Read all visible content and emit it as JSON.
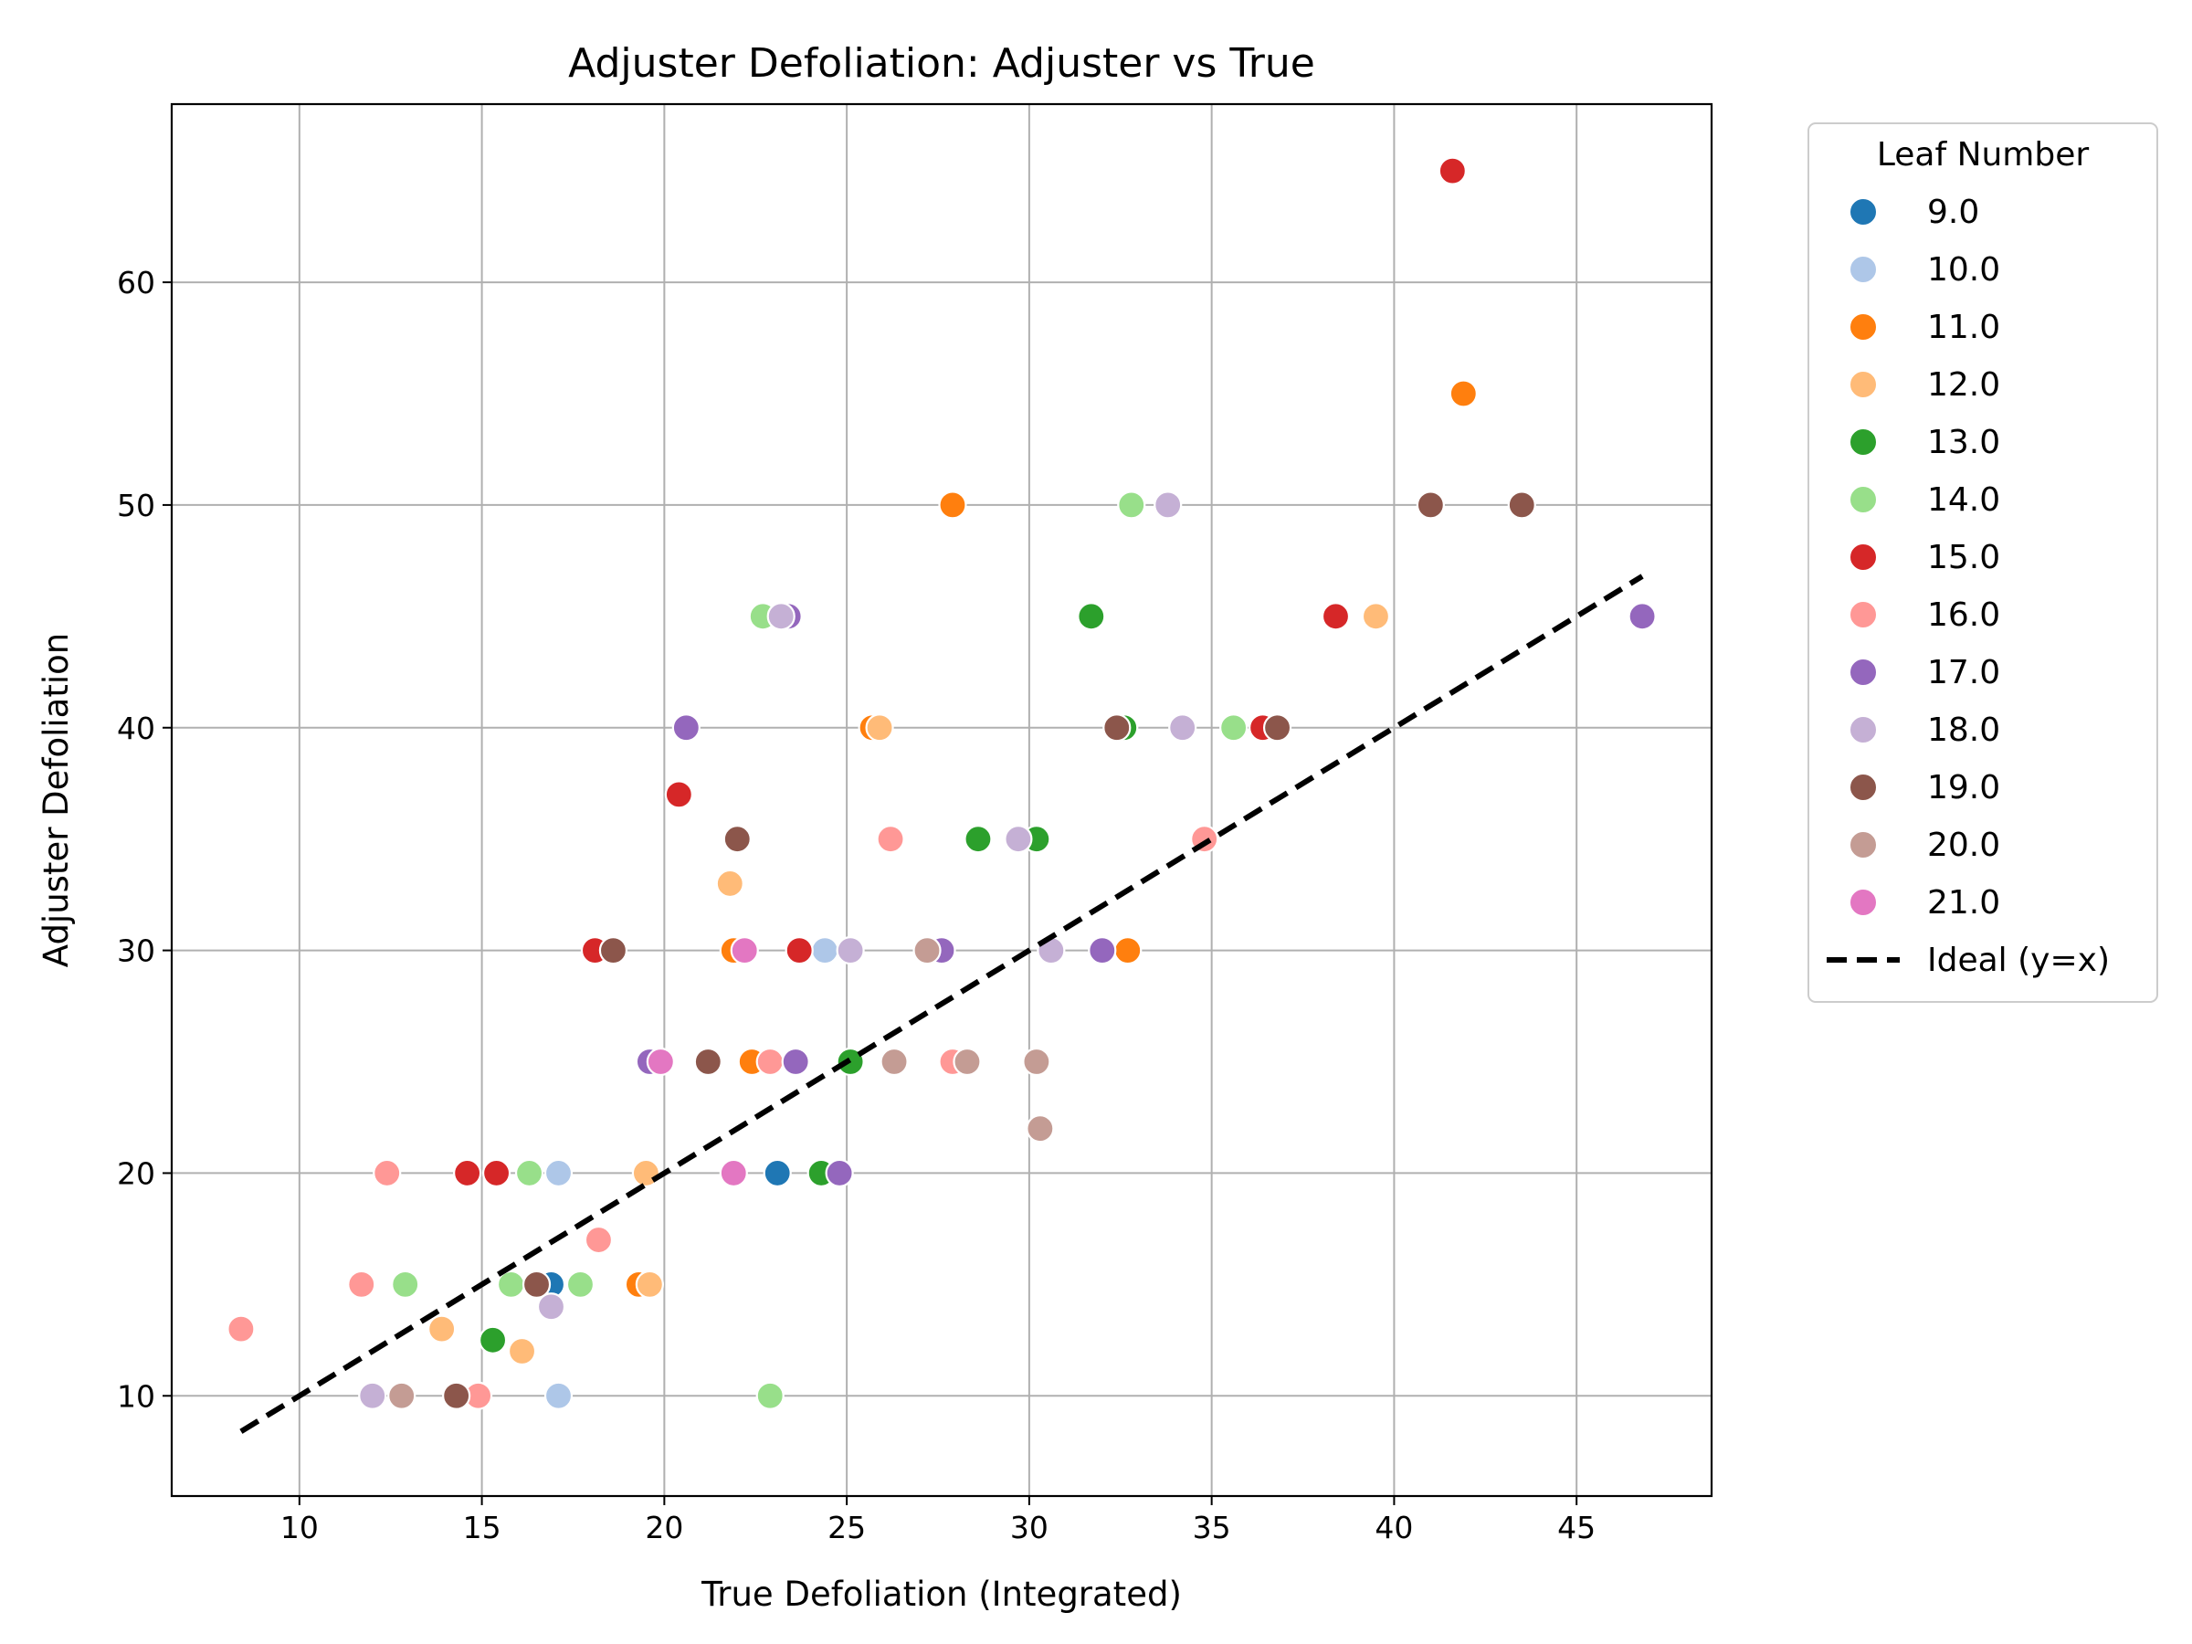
{
  "chart_data": {
    "type": "scatter",
    "title": "Adjuster Defoliation: Adjuster vs True",
    "xlabel": "True Defoliation (Integrated)",
    "ylabel": "Adjuster Defoliation",
    "xlim": [
      6.5,
      48.7
    ],
    "ylim": [
      5.5,
      68
    ],
    "xticks": [
      10,
      15,
      20,
      25,
      30,
      35,
      40,
      45
    ],
    "yticks": [
      10,
      20,
      30,
      40,
      50,
      60
    ],
    "grid": true,
    "legend": {
      "title": "Leaf Number",
      "placement": "outside-right"
    },
    "series": [
      {
        "name": "9.0",
        "color": "#1f77b4",
        "points": [
          [
            16.9,
            15
          ],
          [
            23.1,
            20
          ]
        ]
      },
      {
        "name": "10.0",
        "color": "#aec7e8",
        "points": [
          [
            17.1,
            20
          ],
          [
            17.1,
            10
          ],
          [
            24.4,
            30
          ]
        ]
      },
      {
        "name": "11.0",
        "color": "#ff7f0e",
        "points": [
          [
            27.9,
            50
          ],
          [
            41.9,
            55
          ],
          [
            25.7,
            40
          ],
          [
            21.9,
            30
          ],
          [
            22.4,
            25
          ],
          [
            19.3,
            15
          ],
          [
            32.7,
            30
          ]
        ]
      },
      {
        "name": "12.0",
        "color": "#ffbb78",
        "points": [
          [
            39.5,
            45
          ],
          [
            25.9,
            40
          ],
          [
            21.8,
            33
          ],
          [
            19.5,
            20
          ],
          [
            19.6,
            15
          ],
          [
            13.9,
            13
          ],
          [
            16.1,
            12
          ]
        ]
      },
      {
        "name": "13.0",
        "color": "#2ca02c",
        "points": [
          [
            31.7,
            45
          ],
          [
            28.6,
            35
          ],
          [
            30.2,
            35
          ],
          [
            32.6,
            40
          ],
          [
            25.1,
            25
          ],
          [
            24.3,
            20
          ],
          [
            15.3,
            12.5
          ]
        ]
      },
      {
        "name": "14.0",
        "color": "#98df8a",
        "points": [
          [
            32.8,
            50
          ],
          [
            22.7,
            45
          ],
          [
            35.6,
            40
          ],
          [
            12.9,
            15
          ],
          [
            16.3,
            20
          ],
          [
            15.8,
            15
          ],
          [
            17.7,
            15
          ],
          [
            22.9,
            10
          ]
        ]
      },
      {
        "name": "15.0",
        "color": "#d62728",
        "points": [
          [
            41.6,
            65
          ],
          [
            38.4,
            45
          ],
          [
            36.4,
            40
          ],
          [
            20.4,
            37
          ],
          [
            18.1,
            30
          ],
          [
            23.7,
            30
          ],
          [
            14.6,
            20
          ],
          [
            15.4,
            20
          ]
        ]
      },
      {
        "name": "16.0",
        "color": "#ff9896",
        "points": [
          [
            34.8,
            35
          ],
          [
            26.2,
            35
          ],
          [
            22.9,
            25
          ],
          [
            27.9,
            25
          ],
          [
            12.4,
            20
          ],
          [
            18.2,
            17
          ],
          [
            11.7,
            15
          ],
          [
            8.4,
            13
          ],
          [
            14.9,
            10
          ]
        ]
      },
      {
        "name": "17.0",
        "color": "#9467bd",
        "points": [
          [
            23.4,
            45
          ],
          [
            20.6,
            40
          ],
          [
            27.6,
            30
          ],
          [
            32,
            30
          ],
          [
            46.8,
            45
          ],
          [
            19.6,
            25
          ],
          [
            23.6,
            25
          ],
          [
            24.8,
            20
          ]
        ]
      },
      {
        "name": "18.0",
        "color": "#c5b0d5",
        "points": [
          [
            33.8,
            50
          ],
          [
            23.2,
            45
          ],
          [
            34.2,
            40
          ],
          [
            29.7,
            35
          ],
          [
            25.1,
            30
          ],
          [
            30.6,
            30
          ],
          [
            12,
            10
          ],
          [
            16.9,
            14
          ]
        ]
      },
      {
        "name": "19.0",
        "color": "#8c564b",
        "points": [
          [
            41,
            50
          ],
          [
            43.5,
            50
          ],
          [
            36.8,
            40
          ],
          [
            32.4,
            40
          ],
          [
            22,
            35
          ],
          [
            18.6,
            30
          ],
          [
            21.2,
            25
          ],
          [
            16.5,
            15
          ],
          [
            14.3,
            10
          ]
        ]
      },
      {
        "name": "20.0",
        "color": "#c49c94",
        "points": [
          [
            27.2,
            30
          ],
          [
            26.3,
            25
          ],
          [
            28.3,
            25
          ],
          [
            30.2,
            25
          ],
          [
            30.3,
            22
          ],
          [
            12.8,
            10
          ]
        ]
      },
      {
        "name": "21.0",
        "color": "#e377c2",
        "points": [
          [
            22.2,
            30
          ],
          [
            19.9,
            25
          ],
          [
            21.9,
            20
          ]
        ]
      }
    ],
    "reference_line": {
      "name": "Ideal (y=x)",
      "x": [
        8.4,
        46.8
      ],
      "y": [
        8.4,
        46.8
      ],
      "color": "#000000",
      "style": "dashed"
    }
  }
}
